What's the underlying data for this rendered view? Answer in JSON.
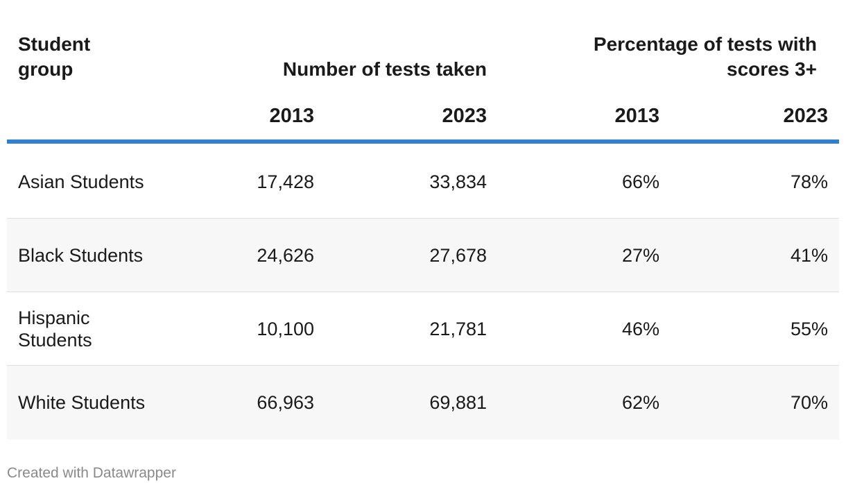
{
  "chart_data": {
    "type": "table",
    "columns": {
      "group": "Student\ngroup",
      "number_header": "Number of tests taken",
      "pct_header": "Percentage of tests with scores 3+",
      "years": [
        "2013",
        "2023",
        "2013",
        "2023"
      ]
    },
    "rows": [
      {
        "group": "Asian Students",
        "tests_2013": "17,428",
        "tests_2023": "33,834",
        "pct_2013": "66%",
        "pct_2023": "78%"
      },
      {
        "group": "Black Students",
        "tests_2013": "24,626",
        "tests_2023": "27,678",
        "pct_2013": "27%",
        "pct_2023": "41%"
      },
      {
        "group": "Hispanic Students",
        "tests_2013": "10,100",
        "tests_2023": "21,781",
        "pct_2013": "46%",
        "pct_2023": "55%"
      },
      {
        "group": "White Students",
        "tests_2013": "66,963",
        "tests_2023": "69,881",
        "pct_2013": "62%",
        "pct_2023": "70%"
      }
    ],
    "accent_color": "#2f7fd6",
    "alt_row_color": "#f7f7f7"
  },
  "footer": {
    "credit": "Created with Datawrapper"
  }
}
